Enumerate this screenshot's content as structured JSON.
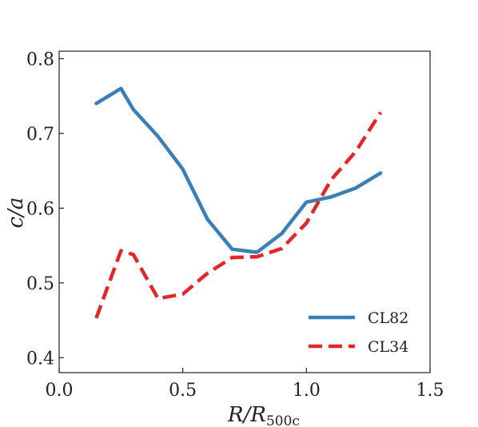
{
  "chart_data": {
    "type": "line",
    "xlabel": "R/R500c",
    "xlabel_main": "R/R",
    "xlabel_sub": "500c",
    "ylabel": "c/a",
    "xlim": [
      0.0,
      1.5
    ],
    "ylim": [
      0.38,
      0.81
    ],
    "xticks": [
      0.0,
      0.5,
      1.0,
      1.5
    ],
    "xtick_labels": [
      "0.0",
      "0.5",
      "1.0",
      "1.5"
    ],
    "yticks": [
      0.4,
      0.5,
      0.6,
      0.7,
      0.8
    ],
    "ytick_labels": [
      "0.4",
      "0.5",
      "0.6",
      "0.7",
      "0.8"
    ],
    "grid": false,
    "legend_position": "bottom-right",
    "series": [
      {
        "name": "CL82",
        "color": "#3a7fb8",
        "style": "solid",
        "x": [
          0.15,
          0.25,
          0.3,
          0.4,
          0.5,
          0.6,
          0.7,
          0.8,
          0.9,
          1.0,
          1.1,
          1.2,
          1.3
        ],
        "y": [
          0.74,
          0.76,
          0.732,
          0.696,
          0.652,
          0.585,
          0.545,
          0.541,
          0.566,
          0.608,
          0.615,
          0.627,
          0.647
        ]
      },
      {
        "name": "CL34",
        "color": "#e0282a",
        "style": "dashed",
        "x": [
          0.15,
          0.25,
          0.3,
          0.4,
          0.5,
          0.6,
          0.7,
          0.8,
          0.9,
          1.0,
          1.1,
          1.2,
          1.3
        ],
        "y": [
          0.453,
          0.543,
          0.538,
          0.479,
          0.485,
          0.513,
          0.534,
          0.535,
          0.546,
          0.58,
          0.638,
          0.676,
          0.728
        ]
      }
    ]
  }
}
